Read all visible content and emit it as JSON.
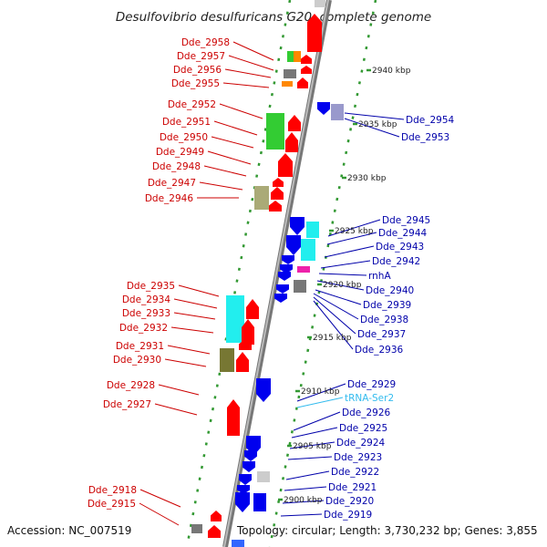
{
  "title": "Desulfovibrio desulfuricans G20, complete genome",
  "footer": {
    "accession": "Accession: NC_007519",
    "info": "Topology: circular; Length: 3,730,232 bp; Genes: 3,855"
  },
  "colors": {
    "minus_strand_label": "#cc0000",
    "plus_strand_label": "#0000aa",
    "trna_label": "#33bbee",
    "backbone": "#888888",
    "ticks": "#339933"
  },
  "kbp_labels": [
    "2940 kbp",
    "2935 kbp",
    "2930 kbp",
    "2925 kbp",
    "2920 kbp",
    "2915 kbp",
    "2910 kbp",
    "2905 kbp",
    "2900 kbp"
  ],
  "left_labels": [
    "Dde_2958",
    "Dde_2957",
    "Dde_2956",
    "Dde_2955",
    "Dde_2952",
    "Dde_2951",
    "Dde_2950",
    "Dde_2949",
    "Dde_2948",
    "Dde_2947",
    "Dde_2946",
    "Dde_2935",
    "Dde_2934",
    "Dde_2933",
    "Dde_2932",
    "Dde_2931",
    "Dde_2930",
    "Dde_2928",
    "Dde_2927",
    "Dde_2918",
    "Dde_2915"
  ],
  "right_labels": [
    "Dde_2954",
    "Dde_2953",
    "Dde_2945",
    "Dde_2944",
    "Dde_2943",
    "Dde_2942",
    "rnhA",
    "Dde_2940",
    "Dde_2939",
    "Dde_2938",
    "Dde_2937",
    "Dde_2936",
    "Dde_2929",
    "tRNA-Ser2",
    "Dde_2926",
    "Dde_2925",
    "Dde_2924",
    "Dde_2923",
    "Dde_2922",
    "Dde_2921",
    "Dde_2920",
    "Dde_2919"
  ]
}
